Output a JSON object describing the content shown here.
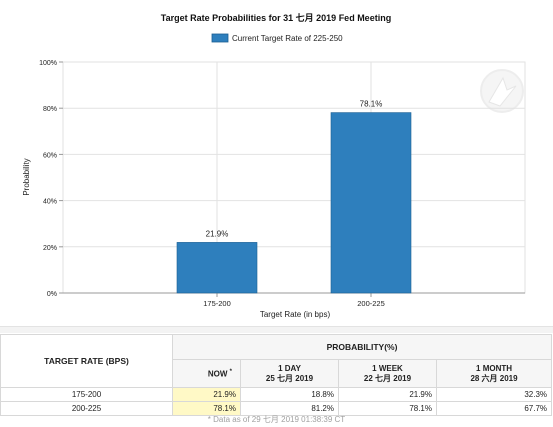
{
  "chart_data": {
    "type": "bar",
    "title": "Target Rate Probabilities for 31 七月 2019  Fed Meeting",
    "legend": "Current Target Rate of 225-250",
    "categories": [
      "175-200",
      "200-225"
    ],
    "values": [
      21.9,
      78.1
    ],
    "value_labels": [
      "21.9%",
      "78.1%"
    ],
    "xlabel": "Target Rate (in bps)",
    "ylabel": "Probability",
    "ylim": [
      0,
      100
    ],
    "yticks": [
      "0%",
      "20%",
      "40%",
      "60%",
      "80%",
      "100%"
    ],
    "grid": true,
    "legend_position": "top-center",
    "bar_color": "#2e7fbd"
  },
  "table": {
    "rate_header": "TARGET RATE (BPS)",
    "prob_header": "PROBABILITY(%)",
    "now_label": "NOW",
    "now_mark": "*",
    "col1_line1": "1 DAY",
    "col1_line2": "25 七月 2019",
    "col2_line1": "1 WEEK",
    "col2_line2": "22 七月 2019",
    "col3_line1": "1 MONTH",
    "col3_line2": "28 六月 2019",
    "rows": [
      {
        "rate": "175-200",
        "now": "21.9%",
        "day": "18.8%",
        "week": "21.9%",
        "month": "32.3%"
      },
      {
        "rate": "200-225",
        "now": "78.1%",
        "day": "81.2%",
        "week": "78.1%",
        "month": "67.7%"
      }
    ],
    "note": "* Data as of 29 七月 2019 01:38:39 CT"
  }
}
